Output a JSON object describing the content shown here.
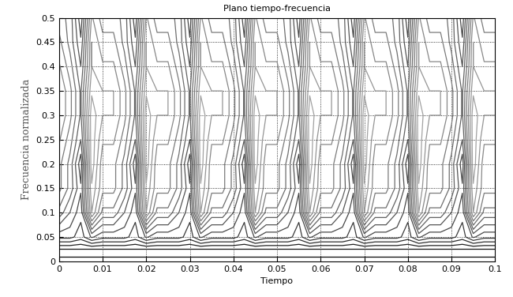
{
  "chart_data": {
    "type": "contour",
    "title": "Plano tiempo-frecuencia",
    "x_label": "Tiempo",
    "y_label": "Frecuencia normalizada",
    "xlim": [
      0,
      0.1
    ],
    "xticks": [
      0,
      0.01,
      0.02,
      0.03,
      0.04,
      0.05,
      0.06,
      0.07,
      0.08,
      0.09,
      0.1
    ],
    "ylim": [
      0,
      0.5
    ],
    "yticks": [
      0,
      0.05,
      0.1,
      0.15,
      0.2,
      0.25,
      0.3,
      0.35,
      0.4,
      0.45,
      0.5
    ],
    "grid": true,
    "x": [
      0,
      0.0025,
      0.005,
      0.0075,
      0.01,
      0.0125,
      0.015,
      0.0175,
      0.02,
      0.0225,
      0.025,
      0.0275,
      0.03,
      0.0325,
      0.035,
      0.0375,
      0.04,
      0.0425,
      0.045,
      0.0475,
      0.05,
      0.0525,
      0.055,
      0.0575,
      0.06,
      0.0625,
      0.065,
      0.0675,
      0.07,
      0.0725,
      0.075,
      0.0775,
      0.08,
      0.0825,
      0.085,
      0.0875,
      0.09,
      0.0925,
      0.095,
      0.0975,
      0.1
    ],
    "y": [
      0,
      0.025,
      0.05,
      0.1,
      0.15,
      0.2,
      0.25,
      0.3,
      0.35,
      0.4,
      0.45,
      0.5
    ],
    "cells": [
      [
        10,
        10,
        10,
        10,
        10,
        10,
        10,
        10,
        10,
        10,
        10,
        10,
        10,
        10,
        10,
        10,
        10,
        10,
        10,
        10,
        10,
        10,
        10,
        10,
        10,
        10,
        10,
        10,
        10,
        10,
        10,
        10,
        10,
        10,
        10,
        10,
        10,
        10,
        10,
        10,
        10
      ],
      [
        9,
        9,
        9,
        9,
        9,
        9,
        9,
        9,
        9,
        9,
        9,
        9,
        9,
        9,
        9,
        9,
        9,
        9,
        9,
        9,
        9,
        9,
        9,
        9,
        9,
        9,
        9,
        9,
        9,
        9,
        9,
        9,
        9,
        9,
        9,
        9,
        9,
        9,
        9,
        9,
        9
      ],
      [
        7,
        7,
        7.5,
        6.5,
        7,
        7,
        7,
        7.5,
        6.5,
        7,
        7,
        7,
        7.5,
        6.5,
        7,
        7,
        7,
        7.5,
        6.5,
        7,
        7,
        7,
        7.5,
        6.5,
        7,
        7,
        7,
        7.5,
        6.5,
        7,
        7,
        7,
        7.5,
        6.5,
        7,
        7,
        7,
        7.5,
        6.5,
        7,
        7
      ],
      [
        5,
        6,
        7,
        3,
        5,
        5,
        6,
        7,
        3,
        5,
        5,
        6,
        7,
        3,
        5,
        5,
        6,
        7,
        3,
        5,
        5,
        6,
        7,
        3,
        5,
        5,
        6,
        7,
        3,
        5,
        5,
        6,
        7,
        3,
        5,
        5,
        6,
        7,
        3,
        5,
        5
      ],
      [
        4,
        5,
        6.5,
        2.5,
        4,
        4,
        5,
        6.5,
        2.5,
        4,
        4,
        5,
        6.5,
        2.5,
        4,
        4,
        5,
        6.5,
        2.5,
        4,
        4,
        5,
        6.5,
        2.5,
        4,
        4,
        5,
        6.5,
        2.5,
        4,
        4,
        5,
        6.5,
        2.5,
        4,
        4,
        5,
        6.5,
        2.5,
        4,
        4
      ],
      [
        4,
        5,
        7,
        2,
        4,
        4,
        5,
        7,
        2,
        4,
        4,
        5,
        7,
        2,
        4,
        4,
        5,
        7,
        2,
        4,
        4,
        5,
        7,
        2,
        4,
        4,
        5,
        7,
        2,
        4,
        4,
        5,
        7,
        2,
        4,
        4,
        5,
        7,
        2,
        4,
        4
      ],
      [
        3.5,
        4.5,
        6,
        2,
        3.5,
        3.5,
        4.5,
        6,
        2,
        3.5,
        3.5,
        4.5,
        6,
        2,
        3.5,
        3.5,
        4.5,
        6,
        2,
        3.5,
        3.5,
        4.5,
        6,
        2,
        3.5,
        3.5,
        4.5,
        6,
        2,
        3.5,
        3.5,
        4.5,
        6,
        2,
        3.5,
        3.5,
        4.5,
        6,
        2,
        3.5,
        3.5
      ],
      [
        3,
        4,
        5.5,
        2,
        3,
        3,
        4,
        5.5,
        2,
        3,
        3,
        4,
        5.5,
        2,
        3,
        3,
        4,
        5.5,
        2,
        3,
        3,
        4,
        5.5,
        2,
        3,
        3,
        4,
        5.5,
        2,
        3,
        3,
        4,
        5.5,
        2,
        3,
        3,
        4,
        5.5,
        2,
        3,
        3
      ],
      [
        3,
        4,
        5.5,
        2.5,
        3,
        3,
        4,
        5.5,
        2.5,
        3,
        3,
        4,
        5.5,
        2.5,
        3,
        3,
        4,
        5.5,
        2.5,
        3,
        3,
        4,
        5.5,
        2.5,
        3,
        3,
        4,
        5.5,
        2.5,
        3,
        3,
        4,
        5.5,
        2.5,
        3,
        3,
        4,
        5.5,
        2.5,
        3,
        3
      ],
      [
        3.5,
        4.5,
        6,
        3,
        3.5,
        3.5,
        4.5,
        6,
        3,
        3.5,
        3.5,
        4.5,
        6,
        3,
        3.5,
        3.5,
        4.5,
        6,
        3,
        3.5,
        3.5,
        4.5,
        6,
        3,
        3.5,
        3.5,
        4.5,
        6,
        3,
        3.5,
        3.5,
        4.5,
        6,
        3,
        3.5,
        3.5,
        4.5,
        6,
        3,
        3.5,
        3.5
      ],
      [
        4,
        5,
        6.5,
        3,
        4,
        4,
        5,
        6.5,
        3,
        4,
        4,
        5,
        6.5,
        3,
        4,
        4,
        5,
        6.5,
        3,
        4,
        4,
        5,
        6.5,
        3,
        4,
        4,
        5,
        6.5,
        3,
        4,
        4,
        5,
        6.5,
        3,
        4,
        4,
        5,
        6.5,
        3,
        4,
        4
      ],
      [
        4.5,
        5,
        7,
        3.5,
        4.5,
        4.5,
        5,
        7,
        3.5,
        4.5,
        4.5,
        5,
        7,
        3.5,
        4.5,
        4.5,
        5,
        7,
        3.5,
        4.5,
        4.5,
        5,
        7,
        3.5,
        4.5,
        4.5,
        5,
        7,
        3.5,
        4.5,
        4.5,
        5,
        7,
        3.5,
        4.5,
        4.5,
        5,
        7,
        3.5,
        4.5,
        4.5
      ]
    ]
  }
}
